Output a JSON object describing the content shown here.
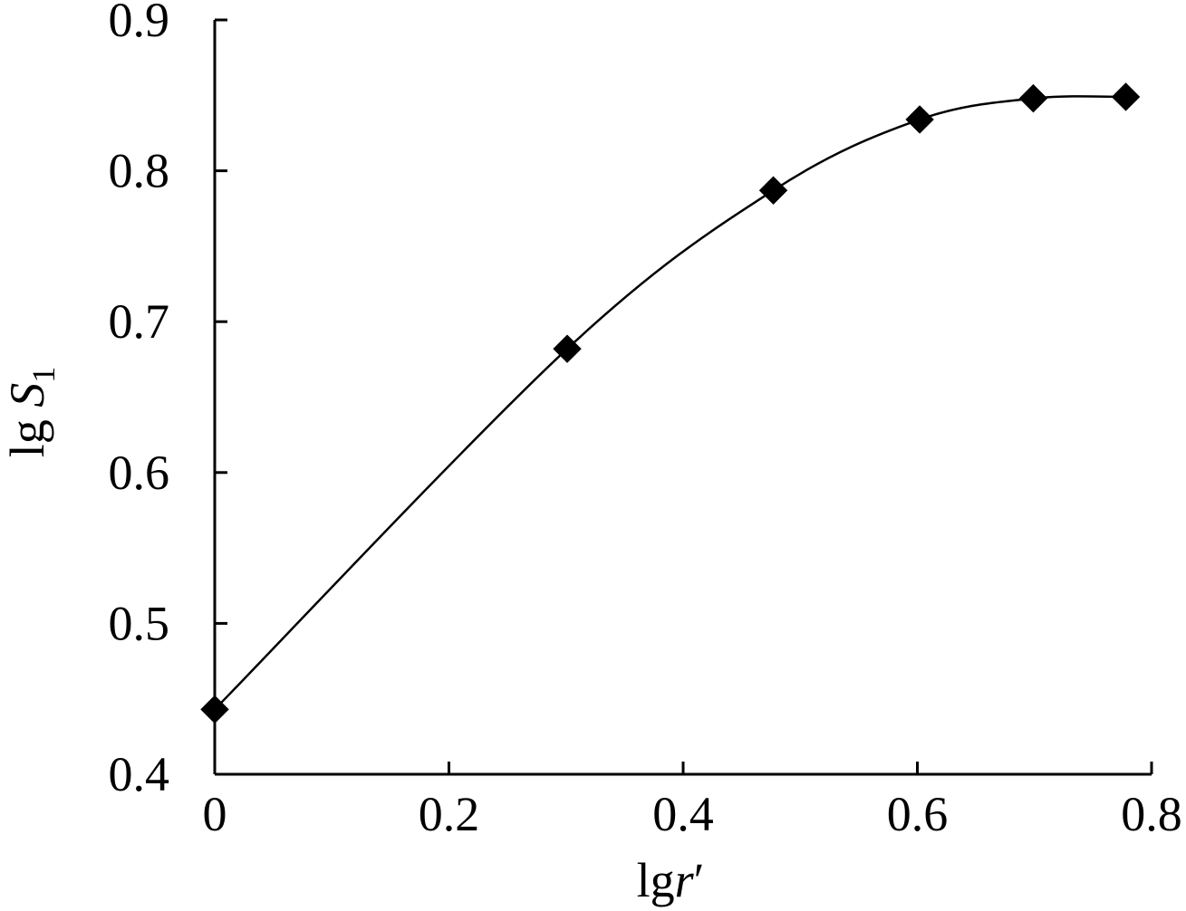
{
  "chart_data": {
    "type": "line",
    "title": "",
    "xlabel": {
      "base": "lg",
      "var": "r",
      "prime": "′"
    },
    "ylabel": {
      "base": "lg ",
      "var": "S",
      "sub": "1"
    },
    "xlim": [
      0,
      0.8
    ],
    "ylim": [
      0.4,
      0.9
    ],
    "x_ticks": [
      0,
      0.2,
      0.4,
      0.6,
      0.8
    ],
    "x_tick_labels": [
      "0",
      "0.2",
      "0.4",
      "0.6",
      "0.8"
    ],
    "y_ticks": [
      0.4,
      0.5,
      0.6,
      0.7,
      0.8,
      0.9
    ],
    "y_tick_labels": [
      "0.4",
      "0.5",
      "0.6",
      "0.7",
      "0.8",
      "0.9"
    ],
    "grid": false,
    "legend": false,
    "marker": "diamond",
    "line_style": "smooth",
    "color": "#000000",
    "series": [
      {
        "x": [
          0,
          0.301,
          0.477,
          0.602,
          0.699,
          0.778
        ],
        "y": [
          0.443,
          0.682,
          0.787,
          0.834,
          0.848,
          0.849
        ]
      }
    ]
  }
}
